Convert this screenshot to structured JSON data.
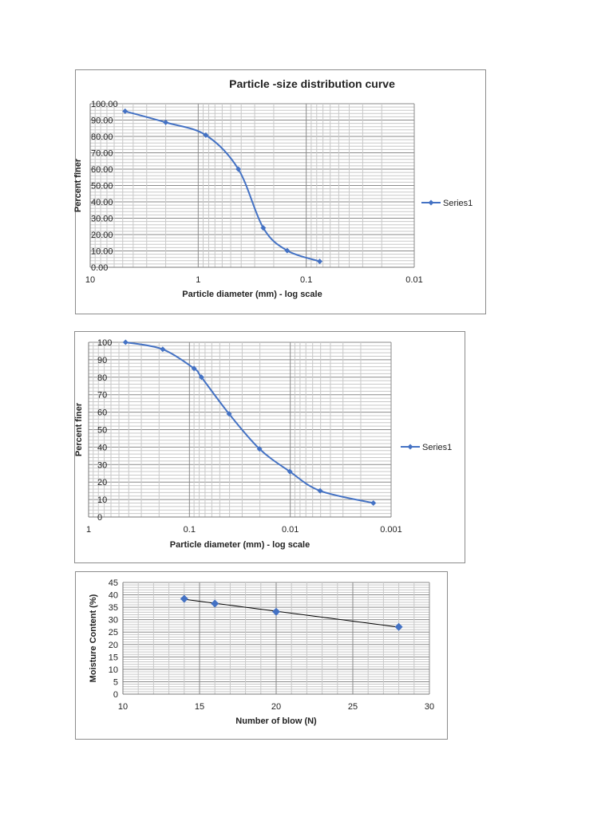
{
  "chart_data": [
    {
      "type": "line",
      "title": "Particle -size distribution curve",
      "xlabel": "Particle diameter (mm) - log scale",
      "ylabel": "Percent finer",
      "xscale": "log",
      "x_reversed": true,
      "xlim": [
        10,
        0.01
      ],
      "ylim": [
        0,
        100
      ],
      "xticks": [
        "10",
        "1",
        "0.1",
        "0.01"
      ],
      "yticks": [
        "0.00",
        "10.00",
        "20.00",
        "30.00",
        "40.00",
        "50.00",
        "60.00",
        "70.00",
        "80.00",
        "90.00",
        "100.00"
      ],
      "grid": true,
      "legend": "right",
      "series": [
        {
          "name": "Series1",
          "color": "#4472c4",
          "x": [
            4.75,
            2.0,
            0.85,
            0.425,
            0.25,
            0.15,
            0.075
          ],
          "y": [
            95.4,
            88.6,
            80.8,
            60.0,
            24.1,
            10.2,
            3.6
          ]
        }
      ]
    },
    {
      "type": "line",
      "title": "",
      "xlabel": "Particle diameter (mm) - log scale",
      "ylabel": "Percent finer",
      "xscale": "log",
      "x_reversed": true,
      "xlim": [
        1,
        0.001
      ],
      "ylim": [
        0,
        100
      ],
      "xticks": [
        "1",
        "0.1",
        "0.01",
        "0.001"
      ],
      "yticks": [
        "0",
        "10",
        "20",
        "30",
        "40",
        "50",
        "60",
        "70",
        "80",
        "90",
        "100"
      ],
      "grid": true,
      "legend": "right",
      "series": [
        {
          "name": "Series1",
          "color": "#4472c4",
          "x": [
            0.43,
            0.184,
            0.09,
            0.076,
            0.0404,
            0.0202,
            0.0101,
            0.00506,
            0.0015
          ],
          "y": [
            100,
            96,
            85,
            80,
            59,
            39,
            26,
            15,
            8
          ]
        }
      ]
    },
    {
      "type": "scatter",
      "title": "",
      "xlabel": "Number of blow (N)",
      "ylabel": "Moisture Content (%)",
      "xscale": "linear",
      "xlim": [
        10,
        30
      ],
      "ylim": [
        0,
        45
      ],
      "xticks": [
        "10",
        "15",
        "20",
        "25",
        "30"
      ],
      "yticks": [
        "0",
        "5",
        "10",
        "15",
        "20",
        "25",
        "30",
        "35",
        "40",
        "45"
      ],
      "grid": true,
      "legend": "none",
      "trendline": {
        "type": "linear",
        "color": "#000000"
      },
      "series": [
        {
          "name": "Series1",
          "color": "#4472c4",
          "x": [
            14,
            16,
            20,
            28
          ],
          "y": [
            38.4,
            36.5,
            33.2,
            27.1
          ]
        }
      ]
    }
  ]
}
